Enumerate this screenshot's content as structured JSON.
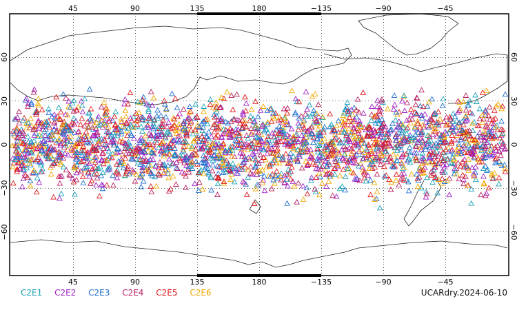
{
  "map": {
    "x_ticks_top": [
      "45",
      "90",
      "135",
      "180",
      "−135",
      "−90",
      "−45"
    ],
    "x_ticks_bottom": [
      "45",
      "90",
      "135",
      "180",
      "−135",
      "−90",
      "−45"
    ],
    "y_ticks_left": [
      "60",
      "30",
      "0",
      "−30",
      "−60"
    ],
    "y_ticks_right": [
      "60",
      "30",
      "0",
      "−30",
      "−60"
    ],
    "lon_range": [
      0,
      360
    ],
    "lat_range": [
      -90,
      90
    ],
    "observation_band_lat": [
      -45,
      45
    ],
    "marker": "triangle"
  },
  "legend": [
    {
      "label": "C2E1",
      "color": "#1aa3b8"
    },
    {
      "label": "C2E2",
      "color": "#a020c8"
    },
    {
      "label": "C2E3",
      "color": "#1f6fd0"
    },
    {
      "label": "C2E4",
      "color": "#b82060"
    },
    {
      "label": "C2E5",
      "color": "#e01818"
    },
    {
      "label": "C2E6",
      "color": "#f2a800"
    }
  ],
  "footer": {
    "credit": "UCARdry.2024-06-10"
  }
}
